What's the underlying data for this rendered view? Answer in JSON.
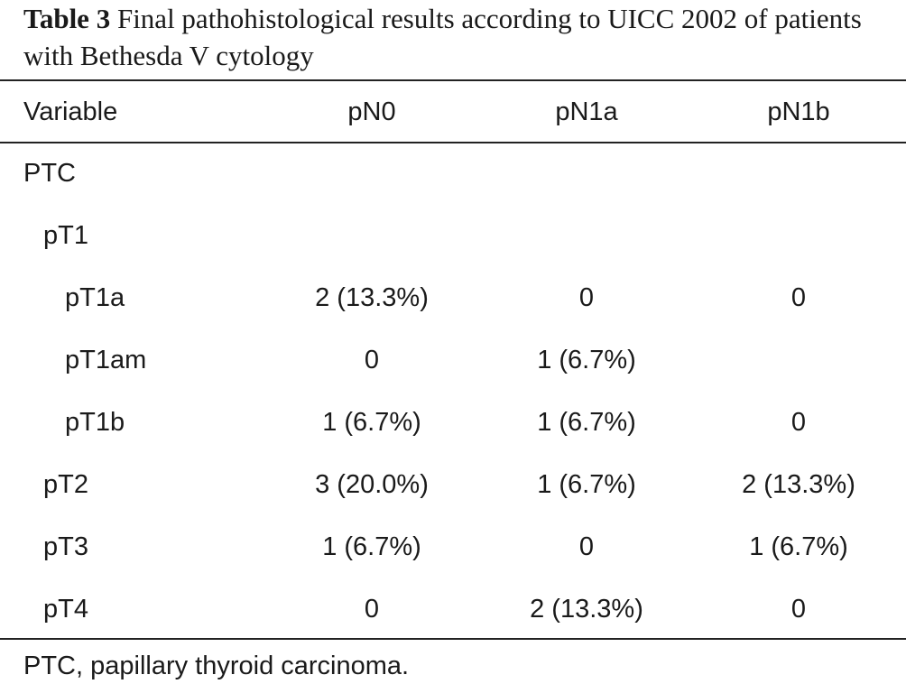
{
  "caption": {
    "label": "Table 3",
    "text": "Final pathohistological results according to UICC 2002 of patients with Bethesda V cytology"
  },
  "header": {
    "variable": "Variable",
    "col1": "pN0",
    "col2": "pN1a",
    "col3": "pN1b"
  },
  "rows": [
    {
      "variable": "PTC",
      "pN0": "",
      "pN1a": "",
      "pN1b": ""
    },
    {
      "variable": "pT1",
      "pN0": "",
      "pN1a": "",
      "pN1b": ""
    },
    {
      "variable": "pT1a",
      "pN0": "2 (13.3%)",
      "pN1a": "0",
      "pN1b": "0"
    },
    {
      "variable": "pT1am",
      "pN0": "0",
      "pN1a": "1 (6.7%)",
      "pN1b": ""
    },
    {
      "variable": "pT1b",
      "pN0": "1 (6.7%)",
      "pN1a": "1 (6.7%)",
      "pN1b": "0"
    },
    {
      "variable": "pT2",
      "pN0": "3 (20.0%)",
      "pN1a": "1 (6.7%)",
      "pN1b": "2 (13.3%)"
    },
    {
      "variable": "pT3",
      "pN0": "1 (6.7%)",
      "pN1a": "0",
      "pN1b": "1 (6.7%)"
    },
    {
      "variable": "pT4",
      "pN0": "0",
      "pN1a": "2 (13.3%)",
      "pN1b": "0"
    }
  ],
  "footnote": "PTC, papillary thyroid carcinoma."
}
